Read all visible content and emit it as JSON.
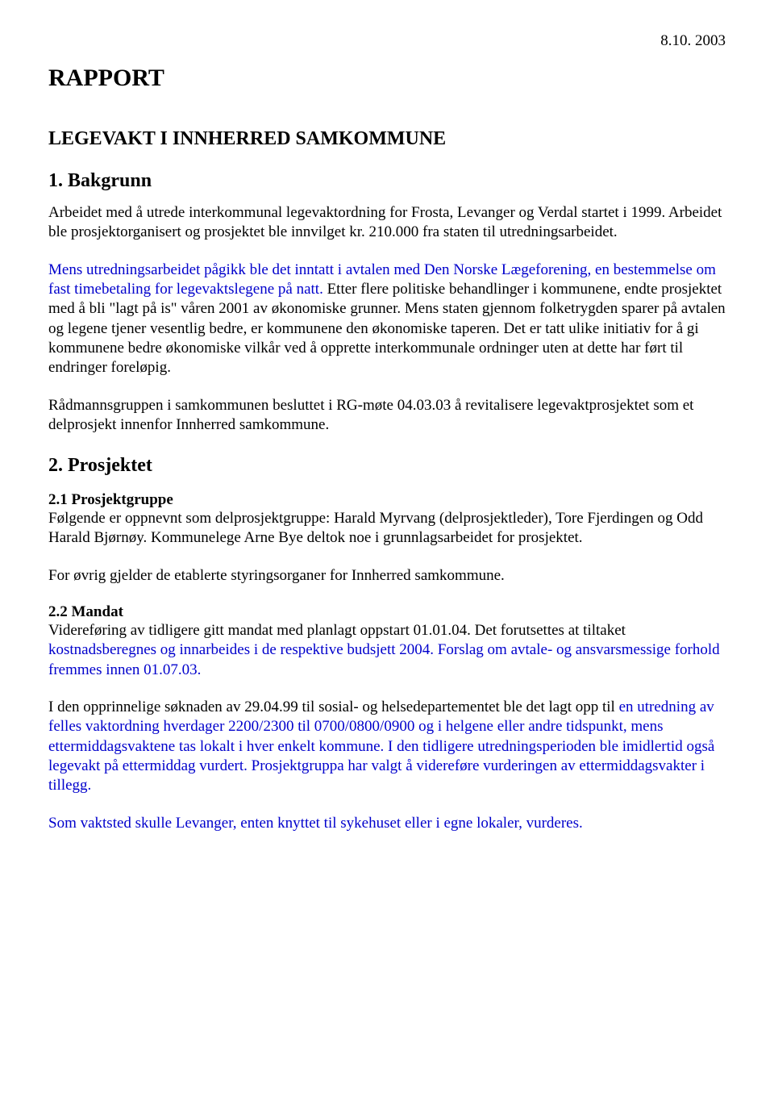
{
  "date": "8.10. 2003",
  "title": "RAPPORT",
  "subtitle": "LEGEVAKT I INNHERRED SAMKOMMUNE",
  "s1": {
    "heading": "1. Bakgrunn",
    "p1": "Arbeidet med å utrede interkommunal legevaktordning for Frosta, Levanger og Verdal startet i 1999. Arbeidet ble prosjektorganisert og prosjektet ble innvilget kr. 210.000 fra staten til utredningsarbeidet.",
    "p2a": "Mens utredningsarbeidet pågikk ble det inntatt i avtalen med Den Norske Lægeforening, en bestemmelse om fast timebetaling for legevaktslegene på natt.",
    "p2b": " Etter flere politiske behandlinger i kommunene, endte prosjektet med å bli \"lagt på is\" våren 2001 av økonomiske grunner. Mens staten gjennom folketrygden sparer på avtalen og legene tjener vesentlig bedre, er kommunene den økonomiske taperen. Det er tatt ulike initiativ for å gi kommunene bedre økonomiske vilkår ved å opprette interkommunale ordninger uten at dette har ført til endringer foreløpig.",
    "p3": "Rådmannsgruppen i samkommunen besluttet i RG-møte 04.03.03 å revitalisere legevaktprosjektet som et delprosjekt innenfor Innherred samkommune."
  },
  "s2": {
    "heading": "2. Prosjektet",
    "sub1": {
      "heading": "2.1 Prosjektgruppe",
      "p1": "Følgende er oppnevnt som delprosjektgruppe: Harald Myrvang (delprosjektleder), Tore Fjerdingen og Odd Harald Bjørnøy. Kommunelege Arne Bye deltok noe i grunnlagsarbeidet for prosjektet.",
      "p2": "For øvrig gjelder de etablerte styringsorganer for Innherred samkommune."
    },
    "sub2": {
      "heading": "2.2 Mandat",
      "p1a": "Videreføring av tidligere gitt mandat med planlagt oppstart 01.01.04. Det forutsettes at tiltaket ",
      "p1b": "kostnadsberegnes og innarbeides i de respektive budsjett 2004. Forslag om  avtale- og ansvarsmessige forhold fremmes innen 01.07.03.",
      "p2a": "I den opprinnelige søknaden av 29.04.99 til sosial- og helsedepartementet ble det lagt opp til ",
      "p2b": "en utredning av felles vaktordning hverdager 2200/2300 til 0700/0800/0900 og i helgene eller andre tidspunkt, mens ettermiddagsvaktene  tas lokalt i hver enkelt kommune. I den tidligere utredningsperioden ble imidlertid også legevakt på ettermiddag vurdert. Prosjektgruppa har valgt å  videreføre vurderingen av ettermiddagsvakter i tillegg.",
      "p3": "Som vaktsted skulle Levanger, enten knyttet til sykehuset eller i egne lokaler, vurderes."
    }
  }
}
